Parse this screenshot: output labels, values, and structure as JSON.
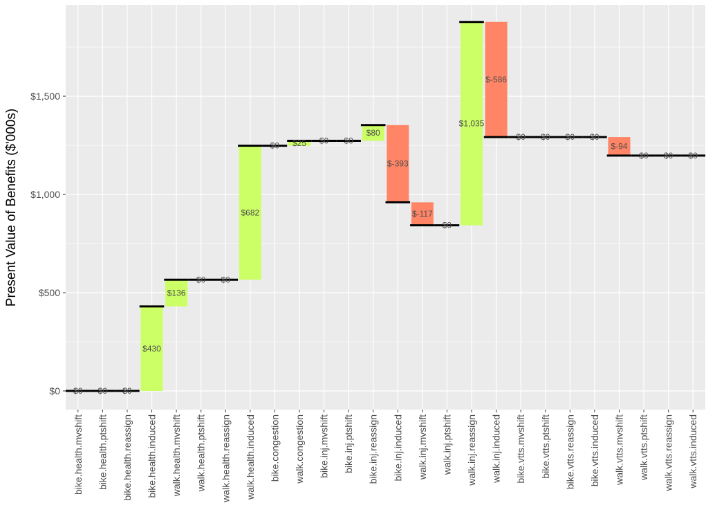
{
  "chart_data": {
    "type": "waterfall",
    "title": "",
    "xlabel": "",
    "ylabel": "Present Value of Benefits ($'000s)",
    "ylim": [
      -95,
      1965
    ],
    "yticks": [
      0,
      500,
      1000,
      1500
    ],
    "ytick_labels": [
      "$0",
      "$500",
      "$1,000",
      "$1,500"
    ],
    "grid": true,
    "colors": {
      "positive": "#ccff66",
      "negative": "#ff8566",
      "panel": "#ebebeb",
      "grid": "#ffffff",
      "level_line": "#000000"
    },
    "categories": [
      "bike.health.mvshift",
      "bike.health.ptshift",
      "bike.health.reassign",
      "bike.health.induced",
      "walk.health.mvshift",
      "walk.health.ptshift",
      "walk.health.reassign",
      "walk.health.induced",
      "bike.congestion",
      "walk.congestion",
      "bike.inj.mvshift",
      "bike.inj.ptshift",
      "bike.inj.reassign",
      "bike.inj.induced",
      "walk.inj.mvshift",
      "walk.inj.ptshift",
      "walk.inj.reassign",
      "walk.inj.induced",
      "bike.vtts.mvshift",
      "bike.vtts.ptshift",
      "bike.vtts.reassign",
      "bike.vtts.induced",
      "walk.vtts.mvshift",
      "walk.vtts.ptshift",
      "walk.vtts.reassign",
      "walk.vtts.induced"
    ],
    "values": [
      0,
      0,
      0,
      430,
      136,
      0,
      0,
      682,
      0,
      25,
      0,
      0,
      80,
      -393,
      -117,
      0,
      1035,
      -586,
      0,
      0,
      0,
      0,
      -94,
      0,
      0,
      0
    ],
    "cumulative_end": [
      0,
      0,
      0,
      430,
      566,
      566,
      566,
      1248,
      1248,
      1273,
      1273,
      1273,
      1353,
      960,
      843,
      843,
      1878,
      1292,
      1292,
      1292,
      1292,
      1292,
      1198,
      1198,
      1198,
      1198
    ],
    "data_labels": [
      "$0",
      "$0",
      "$0",
      "$430",
      "$136",
      "$0",
      "$0",
      "$682",
      "$0",
      "$25",
      "$0",
      "$0",
      "$80",
      "$-393",
      "$-117",
      "$0",
      "$1,035",
      "$-586",
      "$0",
      "$0",
      "$0",
      "$0",
      "$-94",
      "$0",
      "$0",
      "$0"
    ]
  }
}
